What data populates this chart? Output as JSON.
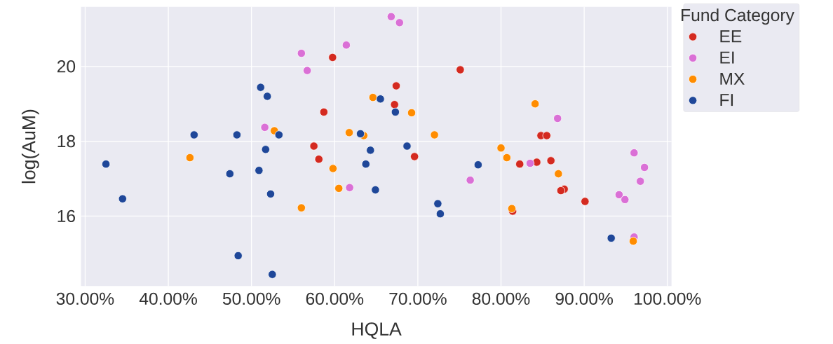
{
  "chart_data": {
    "type": "scatter",
    "xlabel": "HQLA",
    "ylabel": "log(AuM)",
    "legend_title": "Fund Category",
    "xlim": [
      29.5,
      100.5
    ],
    "ylim": [
      14.13,
      21.59
    ],
    "xticks": [
      {
        "value": 30,
        "label": "30.00%"
      },
      {
        "value": 40,
        "label": "40.00%"
      },
      {
        "value": 50,
        "label": "50.00%"
      },
      {
        "value": 60,
        "label": "60.00%"
      },
      {
        "value": 70,
        "label": "70.00%"
      },
      {
        "value": 80,
        "label": "80.00%"
      },
      {
        "value": 90,
        "label": "90.00%"
      },
      {
        "value": 100,
        "label": "100.00%"
      }
    ],
    "yticks": [
      16,
      18,
      20
    ],
    "grid": true,
    "legend": "top right",
    "marker": "circle",
    "series": [
      {
        "name": "EE",
        "color": "#d42a20",
        "x": [
          59.75,
          75.1,
          67.4,
          67.2,
          58.7,
          57.5,
          58.1,
          69.6,
          84.8,
          85.5,
          82.25,
          84.3,
          86.0,
          87.6,
          87.2,
          90.1,
          81.4
        ],
        "values": [
          20.24,
          19.91,
          19.48,
          18.98,
          18.78,
          17.87,
          17.52,
          17.59,
          18.15,
          18.15,
          17.39,
          17.44,
          17.48,
          16.72,
          16.68,
          16.39,
          16.13
        ]
      },
      {
        "name": "EI",
        "color": "#da70d6",
        "x": [
          66.8,
          67.8,
          61.4,
          56.0,
          56.7,
          51.6,
          61.8,
          76.3,
          86.8,
          83.5,
          96.0,
          97.25,
          96.75,
          94.2,
          94.9,
          96.0
        ],
        "values": [
          21.33,
          21.17,
          20.57,
          20.35,
          19.89,
          18.37,
          16.76,
          16.96,
          18.61,
          17.41,
          17.69,
          17.3,
          16.93,
          16.57,
          16.44,
          15.44
        ]
      },
      {
        "name": "MX",
        "color": "#ff8c00",
        "x": [
          42.6,
          52.75,
          64.6,
          69.25,
          61.75,
          63.5,
          72.0,
          59.8,
          60.5,
          56.0,
          84.1,
          80.0,
          80.7,
          86.9,
          81.3,
          95.9
        ],
        "values": [
          17.56,
          18.28,
          19.17,
          18.76,
          18.23,
          18.15,
          18.17,
          17.27,
          16.74,
          16.22,
          19.0,
          17.82,
          17.56,
          17.13,
          16.2,
          15.33
        ]
      },
      {
        "name": "FI",
        "color": "#1f4799",
        "x": [
          32.5,
          34.5,
          43.1,
          48.25,
          51.1,
          51.9,
          53.3,
          51.7,
          50.9,
          52.3,
          47.4,
          48.4,
          52.5,
          65.5,
          67.3,
          63.1,
          64.3,
          63.75,
          64.9,
          68.7,
          72.4,
          72.7,
          77.25,
          93.25
        ],
        "values": [
          17.39,
          16.46,
          18.17,
          18.17,
          19.44,
          19.2,
          18.17,
          17.78,
          17.22,
          16.59,
          17.13,
          14.94,
          14.44,
          19.13,
          18.78,
          18.2,
          17.76,
          17.39,
          16.7,
          17.87,
          16.33,
          16.06,
          17.37,
          15.41
        ]
      }
    ]
  }
}
